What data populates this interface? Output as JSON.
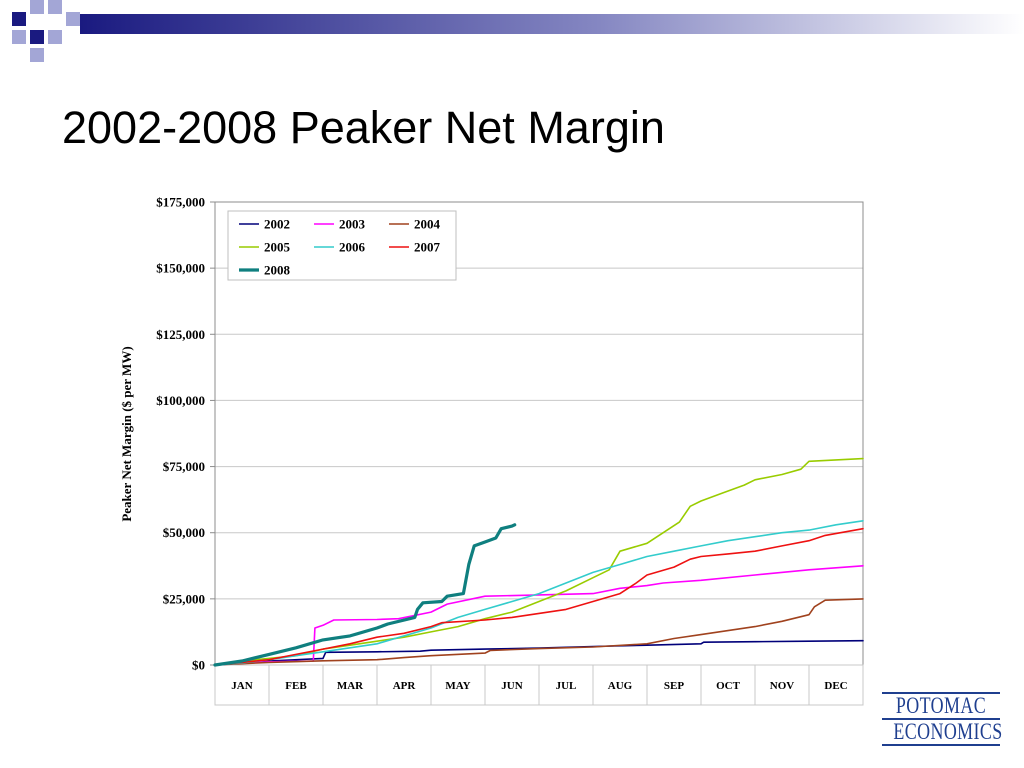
{
  "slide": {
    "title": "2002-2008 Peaker Net Margin",
    "logo_lines": [
      "POTOMAC",
      "ECONOMICS"
    ],
    "accent_colors": [
      "#1a1a80",
      "#a3a6d6"
    ]
  },
  "chart_data": {
    "type": "line",
    "title": "",
    "ylabel": "Peaker Net Margin ($ per MW)",
    "xlabel": "",
    "categories": [
      "JAN",
      "FEB",
      "MAR",
      "APR",
      "MAY",
      "JUN",
      "JUL",
      "AUG",
      "SEP",
      "OCT",
      "NOV",
      "DEC"
    ],
    "ylim": [
      0,
      175000
    ],
    "yticks": [
      0,
      25000,
      50000,
      75000,
      100000,
      125000,
      150000,
      175000
    ],
    "ytick_labels": [
      "$0",
      "$25,000",
      "$50,000",
      "$75,000",
      "$100,000",
      "$125,000",
      "$150,000",
      "$175,000"
    ],
    "grid": "horizontal",
    "legend": {
      "position": "top-left",
      "columns": 3
    },
    "series": [
      {
        "name": "2002",
        "color": "#00007a",
        "width": 1.6,
        "points": [
          [
            0,
            0
          ],
          [
            1,
            1500
          ],
          [
            2,
            2500
          ],
          [
            2.05,
            4800
          ],
          [
            3,
            5000
          ],
          [
            3.8,
            5200
          ],
          [
            4,
            5600
          ],
          [
            5,
            6000
          ],
          [
            6,
            6400
          ],
          [
            7,
            7000
          ],
          [
            8,
            7500
          ],
          [
            9,
            8000
          ],
          [
            9.05,
            8600
          ],
          [
            10,
            8800
          ],
          [
            11,
            9000
          ],
          [
            12,
            9200
          ]
        ]
      },
      {
        "name": "2003",
        "color": "#ff00ff",
        "width": 1.6,
        "points": [
          [
            0,
            0
          ],
          [
            1,
            1200
          ],
          [
            1.82,
            1500
          ],
          [
            1.85,
            14000
          ],
          [
            2,
            15000
          ],
          [
            2.2,
            17000
          ],
          [
            3,
            17200
          ],
          [
            3.4,
            17500
          ],
          [
            4,
            20000
          ],
          [
            4.3,
            23000
          ],
          [
            5,
            26000
          ],
          [
            6,
            26500
          ],
          [
            7,
            27000
          ],
          [
            7.5,
            29000
          ],
          [
            8,
            30000
          ],
          [
            8.3,
            31000
          ],
          [
            9,
            32000
          ],
          [
            10,
            34000
          ],
          [
            11,
            36000
          ],
          [
            12,
            37500
          ]
        ]
      },
      {
        "name": "2004",
        "color": "#a0421e",
        "width": 1.6,
        "points": [
          [
            0,
            0
          ],
          [
            1,
            1000
          ],
          [
            2,
            1600
          ],
          [
            3,
            2000
          ],
          [
            3.5,
            2800
          ],
          [
            4,
            3500
          ],
          [
            5,
            4500
          ],
          [
            5.1,
            5500
          ],
          [
            6,
            6200
          ],
          [
            7,
            6800
          ],
          [
            8,
            8000
          ],
          [
            8.5,
            10000
          ],
          [
            9,
            11500
          ],
          [
            9.5,
            13000
          ],
          [
            10,
            14500
          ],
          [
            10.5,
            16500
          ],
          [
            11,
            19000
          ],
          [
            11.1,
            22000
          ],
          [
            11.3,
            24500
          ],
          [
            12,
            25000
          ]
        ]
      },
      {
        "name": "2005",
        "color": "#99cc00",
        "width": 1.6,
        "points": [
          [
            0,
            0
          ],
          [
            0.5,
            1500
          ],
          [
            1,
            2500
          ],
          [
            1.5,
            3500
          ],
          [
            2,
            6000
          ],
          [
            2.5,
            7500
          ],
          [
            3,
            9000
          ],
          [
            3.5,
            10500
          ],
          [
            4,
            12500
          ],
          [
            4.5,
            14500
          ],
          [
            5,
            17500
          ],
          [
            5.5,
            20000
          ],
          [
            6,
            24000
          ],
          [
            6.5,
            28000
          ],
          [
            7,
            33000
          ],
          [
            7.3,
            36000
          ],
          [
            7.5,
            43000
          ],
          [
            8,
            46000
          ],
          [
            8.3,
            50000
          ],
          [
            8.6,
            54000
          ],
          [
            8.8,
            60000
          ],
          [
            9,
            62000
          ],
          [
            9.4,
            65000
          ],
          [
            9.8,
            68000
          ],
          [
            10,
            70000
          ],
          [
            10.5,
            72000
          ],
          [
            10.85,
            74000
          ],
          [
            11,
            77000
          ],
          [
            12,
            78000
          ]
        ]
      },
      {
        "name": "2006",
        "color": "#33cccc",
        "width": 1.6,
        "points": [
          [
            0,
            0
          ],
          [
            0.5,
            800
          ],
          [
            1,
            2000
          ],
          [
            1.5,
            3500
          ],
          [
            2,
            5000
          ],
          [
            2.5,
            6500
          ],
          [
            3,
            8000
          ],
          [
            3.5,
            11000
          ],
          [
            4,
            14000
          ],
          [
            4.5,
            18000
          ],
          [
            5,
            21000
          ],
          [
            5.5,
            24000
          ],
          [
            6,
            27000
          ],
          [
            6.5,
            31000
          ],
          [
            7,
            35000
          ],
          [
            7.5,
            38000
          ],
          [
            8,
            41000
          ],
          [
            8.5,
            43000
          ],
          [
            9,
            45000
          ],
          [
            9.5,
            47000
          ],
          [
            10,
            48500
          ],
          [
            10.5,
            50000
          ],
          [
            11,
            51000
          ],
          [
            11.5,
            53000
          ],
          [
            12,
            54500
          ]
        ]
      },
      {
        "name": "2007",
        "color": "#ee1111",
        "width": 1.6,
        "points": [
          [
            0,
            0
          ],
          [
            0.5,
            1000
          ],
          [
            1,
            2000
          ],
          [
            1.5,
            4000
          ],
          [
            2,
            6000
          ],
          [
            2.5,
            8000
          ],
          [
            3,
            10500
          ],
          [
            3.5,
            12000
          ],
          [
            4,
            14500
          ],
          [
            4.2,
            16000
          ],
          [
            5,
            17000
          ],
          [
            5.5,
            18000
          ],
          [
            6,
            19500
          ],
          [
            6.5,
            21000
          ],
          [
            7,
            24000
          ],
          [
            7.5,
            27000
          ],
          [
            7.8,
            31000
          ],
          [
            8,
            34000
          ],
          [
            8.5,
            37000
          ],
          [
            8.8,
            40000
          ],
          [
            9,
            41000
          ],
          [
            9.5,
            42000
          ],
          [
            10,
            43000
          ],
          [
            10.5,
            45000
          ],
          [
            11,
            47000
          ],
          [
            11.3,
            49000
          ],
          [
            12,
            51500
          ]
        ]
      },
      {
        "name": "2008",
        "color": "#0f7f7f",
        "width": 3.2,
        "points": [
          [
            0,
            0
          ],
          [
            0.5,
            1500
          ],
          [
            1,
            4000
          ],
          [
            1.5,
            6500
          ],
          [
            2,
            9500
          ],
          [
            2.5,
            11000
          ],
          [
            3,
            14000
          ],
          [
            3.2,
            15500
          ],
          [
            3.7,
            18000
          ],
          [
            3.75,
            21000
          ],
          [
            3.85,
            23500
          ],
          [
            4.2,
            24000
          ],
          [
            4.3,
            26000
          ],
          [
            4.6,
            27000
          ],
          [
            4.7,
            38000
          ],
          [
            4.8,
            45000
          ],
          [
            5,
            46500
          ],
          [
            5.2,
            48000
          ],
          [
            5.3,
            51500
          ],
          [
            5.5,
            52500
          ],
          [
            5.55,
            53000
          ]
        ]
      }
    ]
  }
}
